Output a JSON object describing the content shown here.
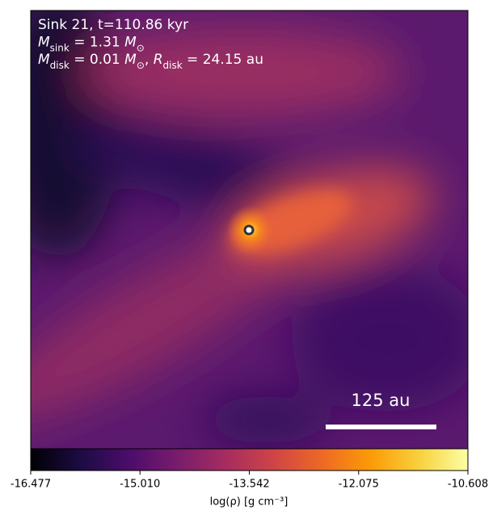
{
  "chart_data": {
    "type": "density-map",
    "annotations": [
      [
        {
          "text": "Sink 21, t=110.86 kyr"
        }
      ],
      [
        {
          "text": "M",
          "italic": true
        },
        {
          "sub": "sink"
        },
        {
          "text": " = 1.31 "
        },
        {
          "text": "M",
          "italic": true
        },
        {
          "sub": "⊙"
        }
      ],
      [
        {
          "text": "M",
          "italic": true
        },
        {
          "sub": "disk"
        },
        {
          "text": " = 0.01 "
        },
        {
          "text": "M",
          "italic": true
        },
        {
          "sub": "⊙"
        },
        {
          "text": ", "
        },
        {
          "text": "R",
          "italic": true
        },
        {
          "sub": "disk"
        },
        {
          "text": " = 24.15 au"
        }
      ]
    ],
    "scale_bar": {
      "label": "125 au"
    },
    "colorbar": {
      "label": "log(ρ) [g cm⁻³]",
      "xlim": [
        -16.477,
        -10.608
      ],
      "xticks": [
        -16.477,
        {
          "value": -15.01,
          "label": "-15.010"
        },
        -13.542,
        -12.075,
        -10.608
      ],
      "colormap": [
        "#000004",
        "#1b0c41",
        "#4a0c6b",
        "#781c6d",
        "#a52c60",
        "#cf4446",
        "#ed6925",
        "#fb9b06",
        "#f7d13d",
        "#fcffa4"
      ]
    }
  }
}
